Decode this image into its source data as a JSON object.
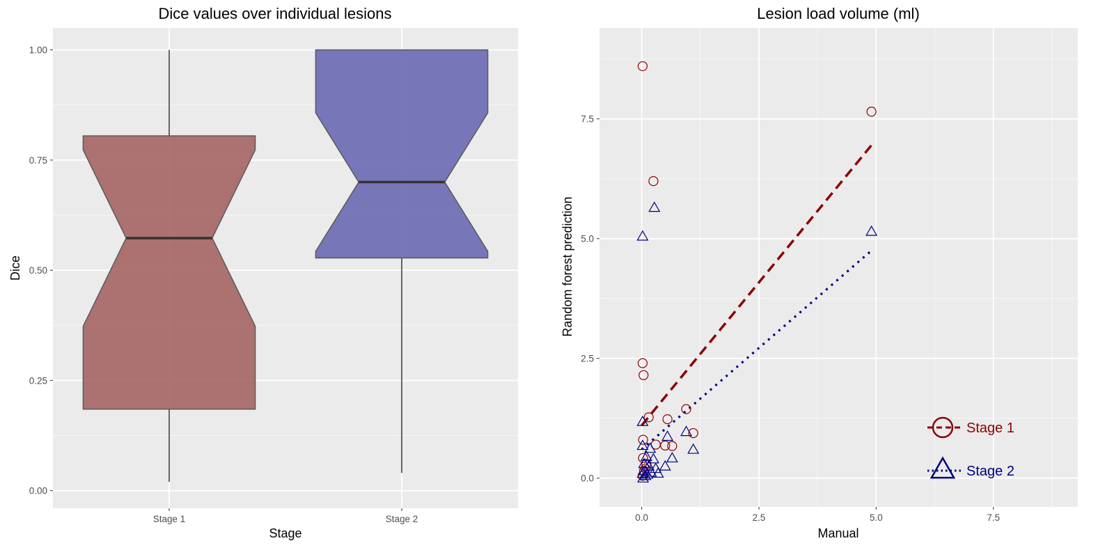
{
  "chart_data": [
    {
      "type": "box",
      "title": "Dice values over individual lesions",
      "xlabel": "Stage",
      "ylabel": "Dice",
      "ylim": [
        -0.04,
        1.05
      ],
      "yticks": [
        "0.00",
        "0.25",
        "0.50",
        "0.75",
        "1.00"
      ],
      "grid": true,
      "notched": true,
      "categories": [
        "Stage 1",
        "Stage 2"
      ],
      "boxes": [
        {
          "name": "Stage 1",
          "min": 0.02,
          "q1": 0.185,
          "median": 0.573,
          "q3": 0.805,
          "max": 1.0,
          "notch_low": 0.373,
          "notch_high": 0.773,
          "color": "#a56464"
        },
        {
          "name": "Stage 2",
          "min": 0.04,
          "q1": 0.528,
          "median": 0.7,
          "q3": 1.0,
          "max": 1.0,
          "notch_low": 0.543,
          "notch_high": 0.857,
          "color": "#6a69b2"
        }
      ]
    },
    {
      "type": "scatter",
      "title": "Lesion load volume (ml)",
      "xlabel": "Manual",
      "ylabel": "Random forest prediction",
      "xlim": [
        -0.9,
        9.3
      ],
      "ylim": [
        -0.6,
        9.4
      ],
      "xticks": [
        "0.0",
        "2.5",
        "5.0",
        "7.5"
      ],
      "yticks": [
        "0.0",
        "2.5",
        "5.0",
        "7.5"
      ],
      "grid": true,
      "legend_position": "bottom-right",
      "series": [
        {
          "name": "Stage 1",
          "marker": "circle",
          "color": "#8b0000",
          "points": [
            [
              0.02,
              8.6
            ],
            [
              0.02,
              2.4
            ],
            [
              0.04,
              2.15
            ],
            [
              0.25,
              6.2
            ],
            [
              4.9,
              7.65
            ],
            [
              0.15,
              1.27
            ],
            [
              0.55,
              1.23
            ],
            [
              0.95,
              1.44
            ],
            [
              1.1,
              0.94
            ],
            [
              0.03,
              0.8
            ],
            [
              0.3,
              0.7
            ],
            [
              0.5,
              0.68
            ],
            [
              0.65,
              0.67
            ],
            [
              0.03,
              0.42
            ],
            [
              0.1,
              0.3
            ],
            [
              0.05,
              0.15
            ],
            [
              0.02,
              0.05
            ],
            [
              0.08,
              0.2
            ]
          ],
          "fit": {
            "x": [
              0.0,
              4.9
            ],
            "y": [
              1.1,
              6.95
            ]
          }
        },
        {
          "name": "Stage 2",
          "marker": "triangle",
          "color": "#000080",
          "points": [
            [
              0.27,
              5.65
            ],
            [
              0.02,
              5.05
            ],
            [
              4.9,
              5.15
            ],
            [
              0.02,
              1.18
            ],
            [
              0.95,
              0.97
            ],
            [
              0.55,
              0.87
            ],
            [
              1.1,
              0.6
            ],
            [
              0.02,
              0.68
            ],
            [
              0.18,
              0.62
            ],
            [
              0.1,
              0.45
            ],
            [
              0.25,
              0.4
            ],
            [
              0.65,
              0.42
            ],
            [
              0.05,
              0.3
            ],
            [
              0.15,
              0.25
            ],
            [
              0.3,
              0.2
            ],
            [
              0.5,
              0.25
            ],
            [
              0.02,
              0.1
            ],
            [
              0.08,
              0.05
            ],
            [
              0.12,
              0.08
            ],
            [
              0.35,
              0.1
            ],
            [
              0.03,
              0.0
            ],
            [
              0.06,
              0.15
            ],
            [
              0.2,
              0.12
            ]
          ],
          "fit": {
            "x": [
              0.0,
              4.9
            ],
            "y": [
              0.6,
              4.75
            ]
          }
        }
      ]
    }
  ]
}
